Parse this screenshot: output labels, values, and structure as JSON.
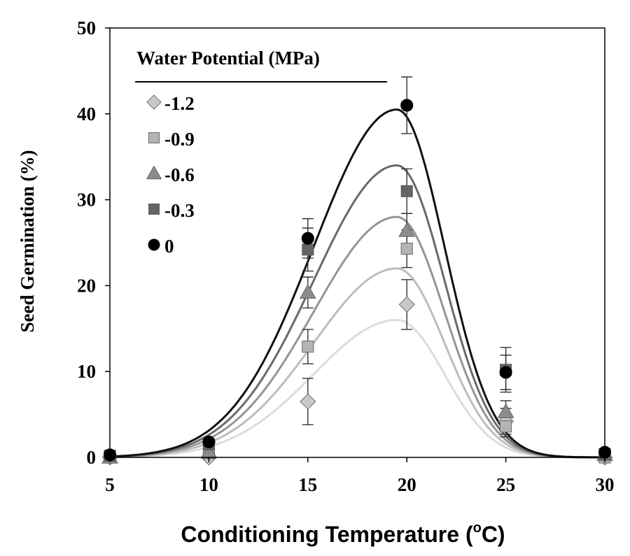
{
  "chart_data": {
    "type": "scatter",
    "title": "",
    "xlabel": "Conditioning Temperature (",
    "xlabel_sup": "o",
    "xlabel_unit": "C)",
    "ylabel": "Seed Germination  (%)",
    "xlim": [
      5,
      30
    ],
    "ylim": [
      0,
      50
    ],
    "x_ticks": [
      5,
      10,
      15,
      20,
      25,
      30
    ],
    "y_ticks": [
      0,
      10,
      20,
      30,
      40,
      50
    ],
    "x_tick_labels": [
      "5",
      "10",
      "15",
      "20",
      "25",
      "30"
    ],
    "y_tick_labels": [
      "0",
      "10",
      "20",
      "30",
      "40",
      "50"
    ],
    "grid": false,
    "legend": {
      "title": "Water Potential  (MPa)",
      "placement": "top-left"
    },
    "series": [
      {
        "name": "-1.2",
        "marker": "diamond",
        "color": "#c8c8c8",
        "curve_color": "#dcdcdc",
        "x": [
          5,
          10,
          15,
          20,
          25,
          30
        ],
        "y": [
          0,
          0,
          6.5,
          17.8,
          4.2,
          0
        ],
        "err": [
          0,
          0,
          2.7,
          2.9,
          1.5,
          0
        ],
        "fit": {
          "peak": 16,
          "opt": 19.5,
          "sl": 4.2,
          "sr": 2.4
        }
      },
      {
        "name": "-0.9",
        "marker": "square",
        "color": "#b4b4b4",
        "curve_color": "#bdbdbd",
        "x": [
          5,
          10,
          15,
          20,
          25,
          30
        ],
        "y": [
          0,
          0.5,
          12.9,
          24.3,
          3.6,
          0
        ],
        "err": [
          0,
          0,
          2.0,
          2.2,
          1.2,
          0
        ],
        "fit": {
          "peak": 22,
          "opt": 19.5,
          "sl": 4.2,
          "sr": 2.4
        }
      },
      {
        "name": "-0.6",
        "marker": "triangle",
        "color": "#8c8c8c",
        "curve_color": "#959595",
        "x": [
          5,
          10,
          15,
          20,
          25,
          30
        ],
        "y": [
          0,
          0.6,
          19.2,
          26.4,
          5.3,
          0.3
        ],
        "err": [
          0,
          0,
          1.8,
          2.0,
          1.3,
          0
        ],
        "fit": {
          "peak": 28,
          "opt": 19.5,
          "sl": 4.2,
          "sr": 2.4
        }
      },
      {
        "name": "-0.3",
        "marker": "square",
        "color": "#646464",
        "curve_color": "#6a6a6a",
        "x": [
          5,
          10,
          15,
          20,
          25,
          30
        ],
        "y": [
          0.2,
          1.5,
          24.2,
          31.0,
          10.2,
          0.4
        ],
        "err": [
          0,
          0,
          2.5,
          2.6,
          2.6,
          0
        ],
        "fit": {
          "peak": 34,
          "opt": 19.5,
          "sl": 4.2,
          "sr": 2.4
        }
      },
      {
        "name": "0",
        "marker": "circle",
        "color": "#000000",
        "curve_color": "#111111",
        "x": [
          5,
          10,
          15,
          20,
          25,
          30
        ],
        "y": [
          0.3,
          1.8,
          25.5,
          41.0,
          9.9,
          0.6
        ],
        "err": [
          0,
          0,
          2.3,
          3.3,
          2.0,
          0
        ],
        "fit": {
          "peak": 40.5,
          "opt": 19.5,
          "sl": 4.2,
          "sr": 2.4
        }
      }
    ]
  }
}
